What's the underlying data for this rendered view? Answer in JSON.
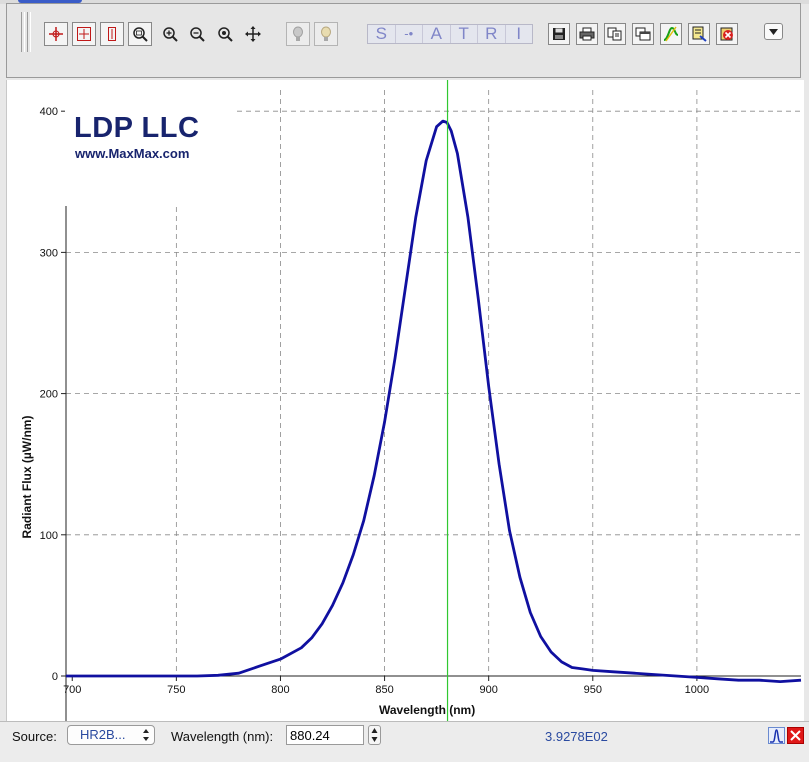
{
  "toolbar": {
    "tools_group1": [
      "crosshair-icon",
      "fit-all-icon",
      "fit-vertical-icon",
      "zoom-box-icon"
    ],
    "tools_group2": [
      "zoom-in-icon",
      "zoom-out-icon",
      "zoom-reset-icon",
      "pan-icon"
    ],
    "lamp_buttons": [
      "lamp-off-icon",
      "lamp-on-icon"
    ],
    "mode_letters": [
      "S",
      "-•",
      "A",
      "T",
      "R",
      "I"
    ],
    "file_buttons": [
      "save-icon",
      "print-icon",
      "copy-icon",
      "copy-window-icon",
      "overlay-icon",
      "export-icon",
      "clear-icon"
    ]
  },
  "logo": {
    "line1": "LDP LLC",
    "line2": "www.MaxMax.com"
  },
  "chart_data": {
    "type": "line",
    "xlabel": "Wavelength (nm)",
    "ylabel": "Radiant Flux (µW/nm)",
    "xlim": [
      697,
      1050
    ],
    "ylim": [
      0,
      415
    ],
    "xticks": [
      700,
      750,
      800,
      850,
      900,
      950,
      1000
    ],
    "yticks": [
      0,
      100,
      200,
      300,
      400
    ],
    "grid": true,
    "line_color": "#1010a0",
    "cursor_color": "#30c830",
    "cursor_x": 880.24,
    "series": [
      {
        "x": [
          697,
          720,
          740,
          760,
          770,
          780,
          790,
          800,
          810,
          815,
          820,
          825,
          830,
          835,
          840,
          845,
          850,
          855,
          860,
          865,
          870,
          875,
          878,
          880,
          882,
          885,
          890,
          895,
          900,
          905,
          910,
          915,
          920,
          925,
          930,
          935,
          940,
          945,
          950,
          960,
          970,
          980,
          990,
          1000,
          1010,
          1020,
          1030,
          1040,
          1050
        ],
        "y": [
          0,
          0,
          0,
          0,
          0.5,
          2,
          7,
          12,
          20,
          27,
          37,
          50,
          66,
          86,
          110,
          142,
          180,
          225,
          275,
          325,
          365,
          389,
          393,
          392,
          386,
          370,
          325,
          267,
          205,
          150,
          103,
          70,
          45,
          28,
          17,
          10,
          6,
          5,
          4,
          3,
          2,
          1,
          0,
          -1,
          -2,
          -3,
          -3,
          -4,
          -3
        ]
      }
    ]
  },
  "status": {
    "source_label": "Source:",
    "source_value": "HR2B...",
    "wavelength_label": "Wavelength (nm):",
    "wavelength_value": "880.24",
    "readout": "3.9278E02"
  }
}
